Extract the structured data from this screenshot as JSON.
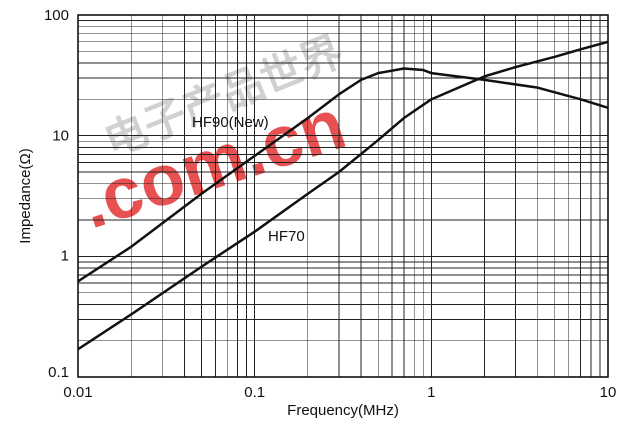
{
  "chart_data": {
    "type": "line",
    "title": "",
    "xlabel": "Frequency(MHz)",
    "ylabel": "Impedance(Ω)",
    "xscale": "log",
    "yscale": "log",
    "xlim": [
      0.01,
      10
    ],
    "ylim": [
      0.1,
      100
    ],
    "grid": true,
    "x_tick_labels": [
      "0.01",
      "0.1",
      "1",
      "10"
    ],
    "y_tick_labels": [
      "0.1",
      "1",
      "10",
      "100"
    ],
    "series": [
      {
        "name": "HF90(New)",
        "color": "#111111",
        "x": [
          0.01,
          0.02,
          0.05,
          0.1,
          0.2,
          0.3,
          0.4,
          0.5,
          0.7,
          0.9,
          1,
          2,
          4,
          7,
          10
        ],
        "y": [
          0.62,
          1.2,
          3.3,
          6.8,
          14,
          22,
          29,
          33,
          36,
          35,
          33,
          29,
          25,
          20,
          17
        ]
      },
      {
        "name": "HF70",
        "color": "#111111",
        "x": [
          0.01,
          0.02,
          0.05,
          0.1,
          0.2,
          0.3,
          0.5,
          0.7,
          1,
          2,
          3,
          5,
          7,
          10
        ],
        "y": [
          0.17,
          0.33,
          0.82,
          1.6,
          3.3,
          5.0,
          9.2,
          14,
          20,
          31,
          37,
          45,
          52,
          60
        ]
      }
    ]
  },
  "watermark": {
    "latin": ".com.cn",
    "cjk": "电子产品世界",
    "color": "#e53a3a"
  }
}
